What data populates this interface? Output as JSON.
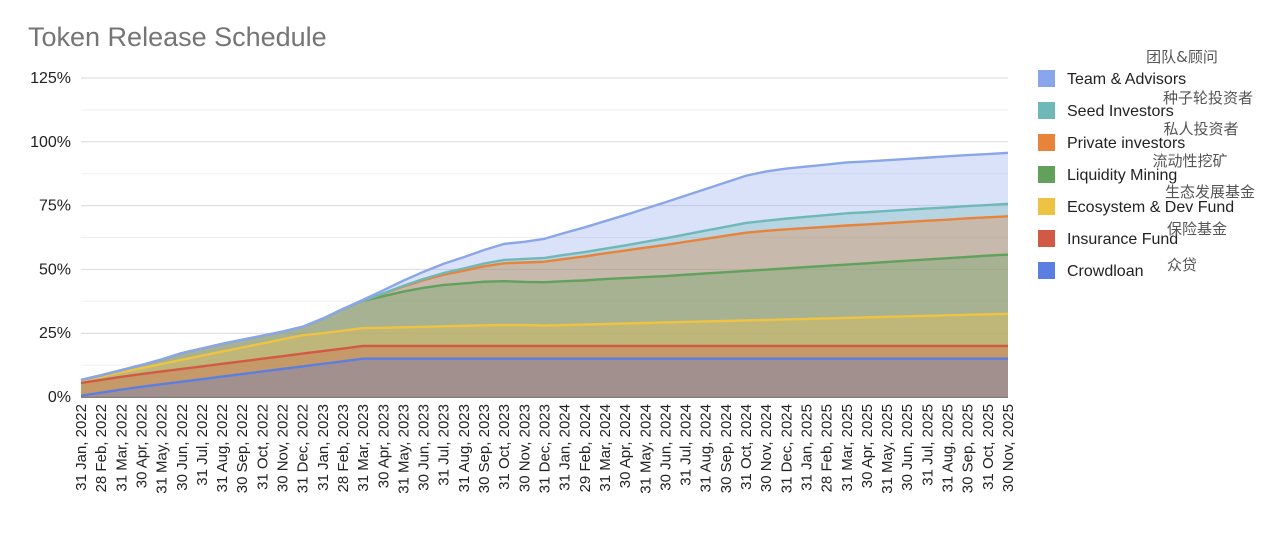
{
  "chart_data": {
    "type": "area",
    "stacked": true,
    "title": "Token Release Schedule",
    "xlabel": "",
    "ylabel": "",
    "ylim": [
      0,
      125
    ],
    "y_ticks": [
      "0%",
      "25%",
      "50%",
      "75%",
      "100%",
      "125%"
    ],
    "y_tick_values": [
      0,
      25,
      50,
      75,
      100,
      125
    ],
    "grid": true,
    "legend_position": "right",
    "x": [
      "31 Jan, 2022",
      "28 Feb, 2022",
      "31 Mar, 2022",
      "30 Apr, 2022",
      "31 May, 2022",
      "30 Jun, 2022",
      "31 Jul, 2022",
      "31 Aug, 2022",
      "30 Sep, 2022",
      "31 Oct, 2022",
      "30 Nov, 2022",
      "31 Dec, 2022",
      "31 Jan, 2023",
      "28 Feb, 2023",
      "31 Mar, 2023",
      "30 Apr, 2023",
      "31 May, 2023",
      "30 Jun, 2023",
      "31 Jul, 2023",
      "31 Aug, 2023",
      "30 Sep, 2023",
      "31 Oct, 2023",
      "30 Nov, 2023",
      "31 Dec, 2023",
      "31 Jan, 2024",
      "29 Feb, 2024",
      "31 Mar, 2024",
      "30 Apr, 2024",
      "31 May, 2024",
      "30 Jun, 2024",
      "31 Jul, 2024",
      "31 Aug, 2024",
      "30 Sep, 2024",
      "31 Oct, 2024",
      "30 Nov, 2024",
      "31 Dec, 2024",
      "31 Jan, 2025",
      "28 Feb, 2025",
      "31 Mar, 2025",
      "30 Apr, 2025",
      "31 May, 2025",
      "30 Jun, 2025",
      "31 Jul, 2025",
      "31 Aug, 2025",
      "30 Sep, 2025",
      "31 Oct, 2025",
      "30 Nov, 2025"
    ],
    "series": [
      {
        "name": "Crowdloan",
        "color": "#5b7fe0",
        "values": [
          0.5,
          1.7,
          2.9,
          4.0,
          5.0,
          6.0,
          7.0,
          8.0,
          9.0,
          10.0,
          11.0,
          12.0,
          13.0,
          14.0,
          15.0,
          15,
          15,
          15,
          15,
          15,
          15,
          15,
          15,
          15,
          15,
          15,
          15,
          15,
          15,
          15,
          15,
          15,
          15,
          15,
          15,
          15,
          15,
          15,
          15,
          15,
          15,
          15,
          15,
          15,
          15,
          15,
          15
        ]
      },
      {
        "name": "Insurance Fund",
        "color": "#d25a45",
        "values": [
          5,
          5,
          5,
          5,
          5,
          5,
          5,
          5,
          5,
          5,
          5,
          5,
          5,
          5,
          5,
          5,
          5,
          5,
          5,
          5,
          5,
          5,
          5,
          5,
          5,
          5,
          5,
          5,
          5,
          5,
          5,
          5,
          5,
          5,
          5,
          5,
          5,
          5,
          5,
          5,
          5,
          5,
          5,
          5,
          5,
          5,
          5
        ]
      },
      {
        "name": "Ecosystem & Dev Fund",
        "color": "#eec343",
        "values": [
          1.0,
          1.3,
          1.8,
          2.3,
          2.9,
          3.6,
          4.2,
          4.8,
          5.4,
          6.0,
          6.6,
          7.2,
          7.0,
          7.0,
          7.0,
          7.1,
          7.3,
          7.5,
          7.7,
          7.9,
          8.1,
          8.2,
          8.2,
          8.0,
          8.2,
          8.4,
          8.6,
          8.8,
          9.0,
          9.2,
          9.4,
          9.6,
          9.8,
          10.0,
          10.2,
          10.4,
          10.6,
          10.8,
          11.0,
          11.2,
          11.4,
          11.6,
          11.8,
          12.0,
          12.2,
          12.4,
          12.6
        ]
      },
      {
        "name": "Liquidity Mining",
        "color": "#62a15c",
        "values": [
          0.2,
          0.5,
          0.8,
          1.2,
          1.8,
          2.6,
          2.8,
          3.0,
          3.0,
          3.0,
          3.0,
          3.3,
          5.7,
          8.5,
          10.7,
          12.4,
          14.0,
          15.3,
          16.2,
          16.6,
          17.1,
          17.2,
          16.9,
          17.0,
          17.2,
          17.3,
          17.6,
          17.8,
          18.0,
          18.2,
          18.5,
          18.8,
          19.1,
          19.4,
          19.7,
          20.0,
          20.3,
          20.6,
          20.9,
          21.2,
          21.5,
          21.8,
          22.1,
          22.4,
          22.7,
          23.0,
          23.2
        ]
      },
      {
        "name": "Private investors",
        "color": "#e8833a",
        "values": [
          0,
          0,
          0,
          0,
          0,
          0,
          0,
          0,
          0,
          0,
          0,
          0,
          0,
          0,
          0,
          1.0,
          2.0,
          3.0,
          4.0,
          5.0,
          6.0,
          7.0,
          7.6,
          8.0,
          8.7,
          9.4,
          10.1,
          10.8,
          11.5,
          12.2,
          12.9,
          13.6,
          14.3,
          15.0,
          15.2,
          15.3,
          15.3,
          15.3,
          15.3,
          15.2,
          15.2,
          15.2,
          15.2,
          15.1,
          15.1,
          15.0,
          15.0
        ]
      },
      {
        "name": "Seed Investors",
        "color": "#6fb8b8",
        "values": [
          0,
          0,
          0,
          0,
          0,
          0,
          0,
          0,
          0,
          0,
          0,
          0,
          0,
          0,
          0,
          0.1,
          0.3,
          0.5,
          0.7,
          0.9,
          1.1,
          1.3,
          1.4,
          1.5,
          1.6,
          1.7,
          1.8,
          2.0,
          2.3,
          2.6,
          2.9,
          3.2,
          3.5,
          3.8,
          4.0,
          4.2,
          4.4,
          4.6,
          4.8,
          4.8,
          4.8,
          4.8,
          4.8,
          4.8,
          4.8,
          4.8,
          4.9
        ]
      },
      {
        "name": "Team & Advisors",
        "color": "#8aa6ea",
        "values": [
          0,
          0,
          0,
          0,
          0,
          0,
          0,
          0,
          0,
          0,
          0,
          0,
          0,
          0,
          0.4,
          1.2,
          2.0,
          2.8,
          3.6,
          4.4,
          5.3,
          6.3,
          6.7,
          7.5,
          8.6,
          9.7,
          10.8,
          11.9,
          13.0,
          14.1,
          15.2,
          16.3,
          17.4,
          18.5,
          19.3,
          19.6,
          19.7,
          19.8,
          19.9,
          19.9,
          19.9,
          19.9,
          19.9,
          20.0,
          20.0,
          20.0,
          20.0
        ]
      }
    ],
    "legend_order": [
      "Team & Advisors",
      "Seed Investors",
      "Private investors",
      "Liquidity Mining",
      "Ecosystem & Dev Fund",
      "Insurance Fund",
      "Crowdloan"
    ],
    "annotations": [
      "团队&顾问",
      "种子轮投资者",
      "私人投资者",
      "流动性挖矿",
      "生态发展基金",
      "保险基金",
      "众贷"
    ]
  }
}
